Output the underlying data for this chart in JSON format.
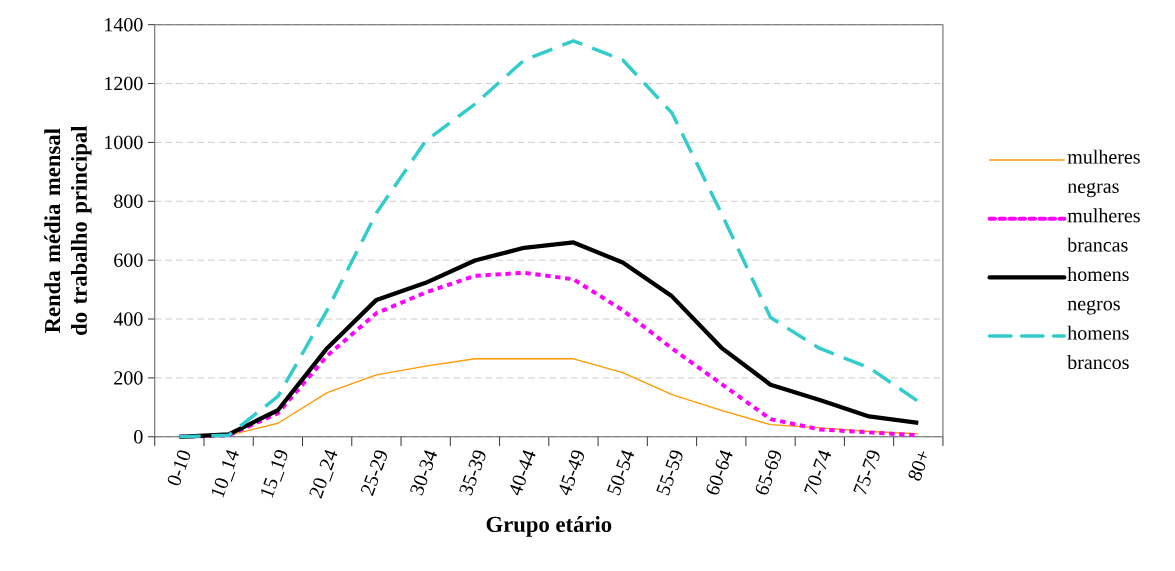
{
  "chart_data": {
    "type": "line",
    "xlabel": "Grupo etário",
    "ylabel": "Renda média mensal do trabalho principal",
    "categories": [
      "0-10",
      "10_14",
      "15_19",
      "20_24",
      "25-29",
      "30-34",
      "35-39",
      "40-44",
      "45-49",
      "50-54",
      "55-59",
      "60-64",
      "65-69",
      "70-74",
      "75-79",
      "80+"
    ],
    "series": [
      {
        "name": "mulheres negras",
        "color": "#ff9900",
        "line_style": "solid",
        "values": [
          0,
          5,
          46,
          150,
          210,
          240,
          265,
          265,
          265,
          218,
          143,
          90,
          41,
          30,
          18,
          10
        ]
      },
      {
        "name": "mulheres brancas",
        "color": "#ff00ff",
        "line_style": "dotted",
        "values": [
          0,
          5,
          80,
          275,
          420,
          490,
          547,
          557,
          535,
          430,
          300,
          180,
          60,
          25,
          15,
          5
        ]
      },
      {
        "name": "homens negros",
        "color": "#000000",
        "line_style": "solid",
        "values": [
          0,
          8,
          90,
          301,
          465,
          523,
          599,
          642,
          660,
          592,
          477,
          303,
          177,
          125,
          69,
          47
        ]
      },
      {
        "name": "homens brancos",
        "color": "#33cccc",
        "line_style": "dashed",
        "values": [
          0,
          5,
          137,
          430,
          760,
          1005,
          1130,
          1280,
          1345,
          1280,
          1100,
          760,
          405,
          300,
          235,
          120
        ]
      }
    ],
    "ylim": [
      0,
      1400
    ],
    "yticks": [
      0,
      200,
      400,
      600,
      800,
      1000,
      1200,
      1400
    ],
    "grid": "y",
    "legend": "right"
  }
}
